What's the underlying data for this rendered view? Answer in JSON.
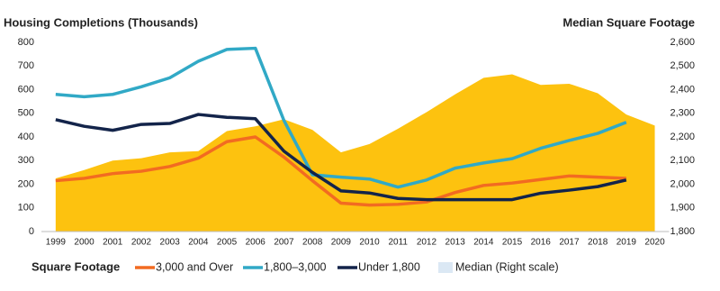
{
  "chart_data": {
    "type": "line",
    "y_title": "Housing Completions (Thousands)",
    "y2_title": "Median Square Footage",
    "legend_title": "Square Footage",
    "categories": [
      "1999",
      "2000",
      "2001",
      "2002",
      "2003",
      "2004",
      "2005",
      "2006",
      "2007",
      "2008",
      "2009",
      "2010",
      "2011",
      "2012",
      "2013",
      "2014",
      "2015",
      "2016",
      "2017",
      "2018",
      "2019",
      "2020"
    ],
    "ylim": [
      0,
      800
    ],
    "yticks": [
      0,
      100,
      200,
      300,
      400,
      500,
      600,
      700,
      800
    ],
    "y2lim": [
      1800,
      2600
    ],
    "y2ticks": [
      {
        "value": 1800,
        "label": "1,800"
      },
      {
        "value": 1900,
        "label": "1,900"
      },
      {
        "value": 2000,
        "label": "2,000"
      },
      {
        "value": 2100,
        "label": "2,100"
      },
      {
        "value": 2200,
        "label": "2,200"
      },
      {
        "value": 2300,
        "label": "2,300"
      },
      {
        "value": 2400,
        "label": "2,400"
      },
      {
        "value": 2500,
        "label": "2,500"
      },
      {
        "value": 2600,
        "label": "2,600"
      }
    ],
    "series": [
      {
        "name": "Median (Right scale)",
        "type": "area",
        "axis": "y2",
        "color": "#fdc20f",
        "legend_color": "#dbe8f4",
        "values": [
          2025,
          2060,
          2100,
          2110,
          2135,
          2140,
          2225,
          2245,
          2275,
          2230,
          2135,
          2170,
          2235,
          2305,
          2380,
          2450,
          2465,
          2420,
          2425,
          2385,
          2295,
          2248
        ]
      },
      {
        "name": "3,000 and Over",
        "color": "#f26b21",
        "values": [
          215,
          225,
          245,
          255,
          275,
          310,
          380,
          400,
          315,
          215,
          120,
          112,
          115,
          125,
          165,
          195,
          205,
          220,
          235,
          230,
          225,
          null
        ]
      },
      {
        "name": "1,800–3,000",
        "color": "#31a9c6",
        "values": [
          580,
          570,
          580,
          612,
          650,
          720,
          770,
          775,
          470,
          240,
          230,
          222,
          188,
          218,
          268,
          290,
          308,
          352,
          385,
          415,
          462,
          null
        ]
      },
      {
        "name": "Under 1,800",
        "color": "#13244a",
        "values": [
          473,
          445,
          428,
          453,
          457,
          495,
          483,
          477,
          340,
          250,
          172,
          163,
          140,
          135,
          135,
          135,
          135,
          162,
          175,
          190,
          218,
          null
        ]
      }
    ]
  }
}
